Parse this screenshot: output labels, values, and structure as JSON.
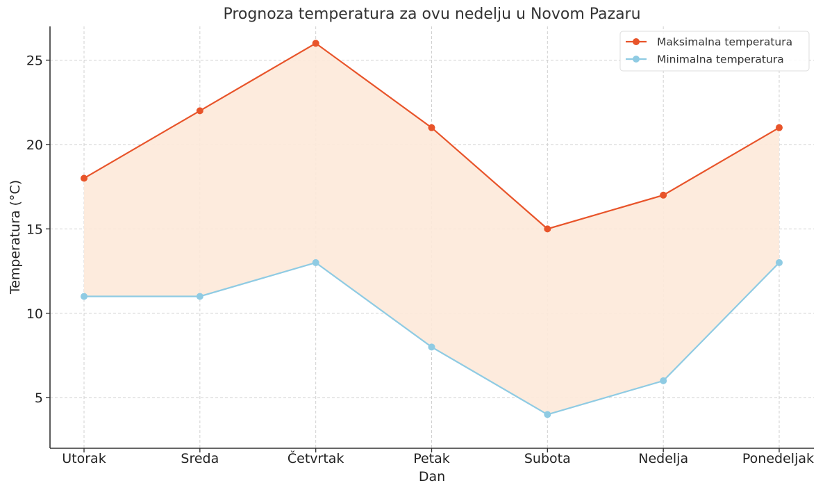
{
  "chart_data": {
    "type": "line",
    "title": "Prognoza temperatura za ovu nedelju u Novom Pazaru",
    "xlabel": "Dan",
    "ylabel": "Temperatura (°C)",
    "categories": [
      "Utorak",
      "Sreda",
      "Četvrtak",
      "Petak",
      "Subota",
      "Nedelja",
      "Ponedeljak"
    ],
    "series": [
      {
        "name": "Maksimalna temperatura",
        "values": [
          18,
          22,
          26,
          21,
          15,
          17,
          21
        ],
        "color": "#e8542a"
      },
      {
        "name": "Minimalna temperatura",
        "values": [
          11,
          11,
          13,
          8,
          4,
          6,
          13
        ],
        "color": "#8fcbe3"
      }
    ],
    "fill_between_color": "#fde9d9",
    "ylim": [
      2,
      27
    ],
    "yticks": [
      5,
      10,
      15,
      20,
      25
    ],
    "grid": true,
    "legend_position": "top-right"
  }
}
